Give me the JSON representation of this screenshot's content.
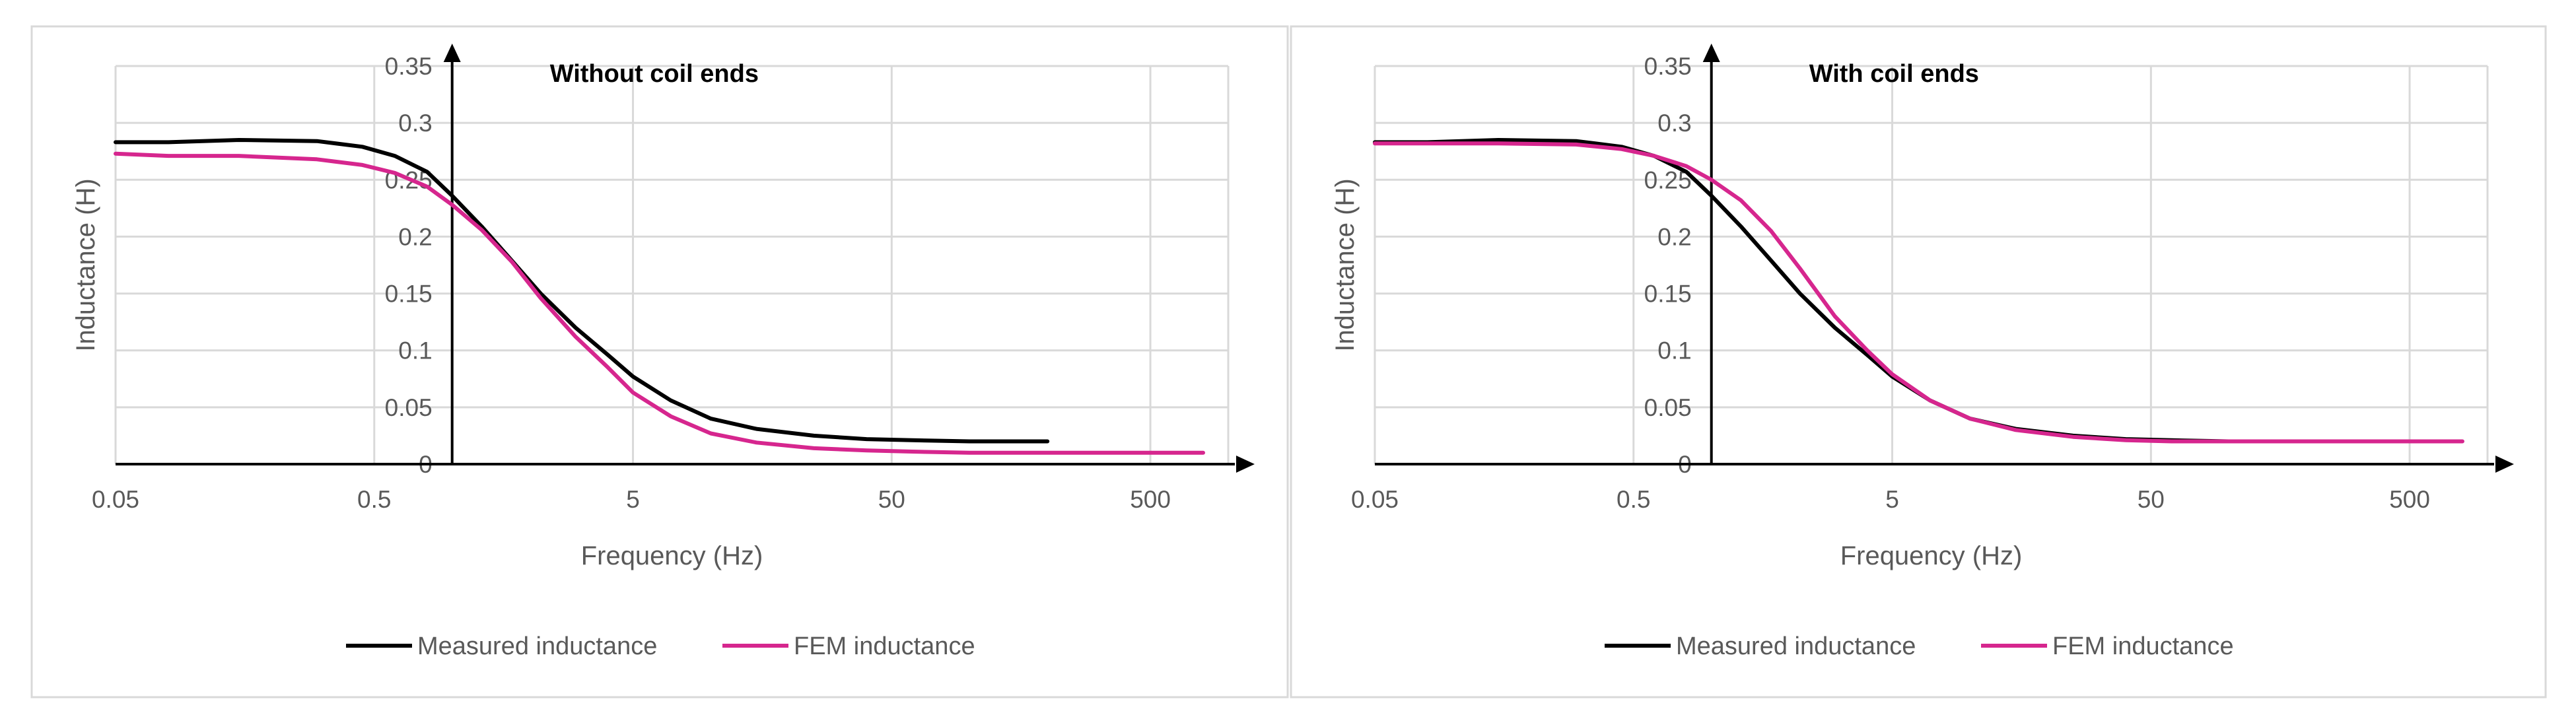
{
  "colors": {
    "background": "#ffffff",
    "panel_border": "#d9d9d9",
    "gridline": "#d9d9d9",
    "axis": "#000000",
    "tick_label": "#595959",
    "measured": "#000000",
    "fem": "#d6268e"
  },
  "chart_data": [
    {
      "type": "line",
      "title": "Without coil ends",
      "xlabel": "Frequency (Hz)",
      "ylabel": "Inductance (H)",
      "x_scale": "log",
      "xlim": [
        0.05,
        1000
      ],
      "ylim": [
        0,
        0.35
      ],
      "x_ticks": [
        0.05,
        0.5,
        5,
        50,
        500
      ],
      "x_tick_labels": [
        "0.05",
        "0.5",
        "5",
        "50",
        "500"
      ],
      "y_ticks": [
        0,
        0.05,
        0.1,
        0.15,
        0.2,
        0.25,
        0.3,
        0.35
      ],
      "y_tick_labels": [
        "0",
        "0.05",
        "0.1",
        "0.15",
        "0.2",
        "0.25",
        "0.3",
        "0.35"
      ],
      "y_axis_crosses_x": 1,
      "grid": true,
      "legend": "bottom",
      "series": [
        {
          "name": "Measured inductance",
          "color": "#000000",
          "x": [
            0.05,
            0.08,
            0.15,
            0.3,
            0.45,
            0.6,
            0.8,
            1.0,
            1.3,
            1.7,
            2.2,
            3.0,
            4.0,
            5.0,
            7.0,
            10.0,
            15.0,
            25.0,
            40.0,
            60.0,
            100.0,
            150.0,
            200.0
          ],
          "y": [
            0.283,
            0.283,
            0.285,
            0.284,
            0.279,
            0.271,
            0.257,
            0.236,
            0.209,
            0.179,
            0.15,
            0.12,
            0.096,
            0.077,
            0.056,
            0.04,
            0.031,
            0.025,
            0.022,
            0.021,
            0.02,
            0.02,
            0.02
          ]
        },
        {
          "name": "FEM inductance",
          "color": "#d6268e",
          "x": [
            0.05,
            0.08,
            0.15,
            0.3,
            0.45,
            0.6,
            0.8,
            1.0,
            1.3,
            1.7,
            2.2,
            3.0,
            4.0,
            5.0,
            7.0,
            10.0,
            15.0,
            25.0,
            40.0,
            60.0,
            100.0,
            200.0,
            400.0,
            800.0
          ],
          "y": [
            0.273,
            0.271,
            0.271,
            0.268,
            0.263,
            0.256,
            0.244,
            0.228,
            0.206,
            0.178,
            0.146,
            0.112,
            0.085,
            0.063,
            0.042,
            0.027,
            0.019,
            0.014,
            0.012,
            0.011,
            0.01,
            0.01,
            0.01,
            0.01
          ]
        }
      ]
    },
    {
      "type": "line",
      "title": "With coil ends",
      "xlabel": "Frequency (Hz)",
      "ylabel": "Inductance (H)",
      "x_scale": "log",
      "xlim": [
        0.05,
        1000
      ],
      "ylim": [
        0,
        0.35
      ],
      "x_ticks": [
        0.05,
        0.5,
        5,
        50,
        500
      ],
      "x_tick_labels": [
        "0.05",
        "0.5",
        "5",
        "50",
        "500"
      ],
      "y_ticks": [
        0,
        0.05,
        0.1,
        0.15,
        0.2,
        0.25,
        0.3,
        0.35
      ],
      "y_tick_labels": [
        "0",
        "0.05",
        "0.1",
        "0.15",
        "0.2",
        "0.25",
        "0.3",
        "0.35"
      ],
      "y_axis_crosses_x": 1,
      "grid": true,
      "legend": "bottom",
      "series": [
        {
          "name": "Measured inductance",
          "color": "#000000",
          "x": [
            0.05,
            0.08,
            0.15,
            0.3,
            0.45,
            0.6,
            0.8,
            1.0,
            1.3,
            1.7,
            2.2,
            3.0,
            4.0,
            5.0,
            7.0,
            10.0,
            15.0,
            25.0,
            40.0,
            60.0,
            100.0,
            150.0,
            200.0
          ],
          "y": [
            0.283,
            0.283,
            0.285,
            0.284,
            0.279,
            0.271,
            0.257,
            0.236,
            0.209,
            0.179,
            0.15,
            0.12,
            0.096,
            0.077,
            0.056,
            0.04,
            0.031,
            0.025,
            0.022,
            0.021,
            0.02,
            0.02,
            0.02
          ]
        },
        {
          "name": "FEM inductance",
          "color": "#d6268e",
          "x": [
            0.05,
            0.08,
            0.15,
            0.3,
            0.45,
            0.6,
            0.8,
            1.0,
            1.3,
            1.7,
            2.2,
            3.0,
            4.0,
            5.0,
            7.0,
            10.0,
            15.0,
            25.0,
            40.0,
            60.0,
            100.0,
            200.0,
            400.0,
            800.0
          ],
          "y": [
            0.282,
            0.282,
            0.282,
            0.281,
            0.277,
            0.271,
            0.262,
            0.25,
            0.232,
            0.205,
            0.172,
            0.13,
            0.1,
            0.079,
            0.056,
            0.04,
            0.03,
            0.024,
            0.021,
            0.02,
            0.02,
            0.02,
            0.02,
            0.02
          ]
        }
      ]
    }
  ]
}
